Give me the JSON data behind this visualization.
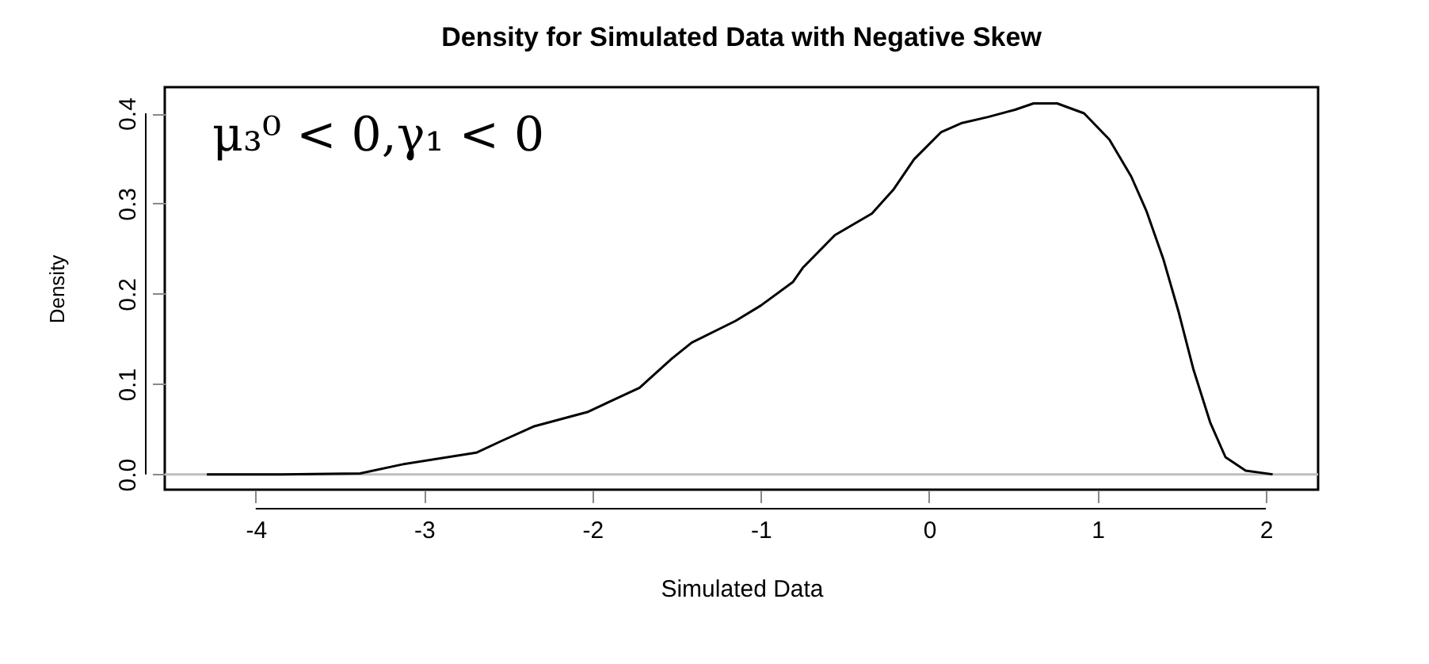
{
  "chart_data": {
    "type": "line",
    "title": "Density for Simulated Data with Negative Skew",
    "xlabel": "Simulated Data",
    "ylabel": "Density",
    "annotations": [
      "μ₃⁰ < 0,γ₁ < 0"
    ],
    "series": [
      {
        "color": "#000000",
        "x": [
          -4.29,
          -3.85,
          -3.38,
          -3.13,
          -2.69,
          -2.54,
          -2.35,
          -2.03,
          -1.72,
          -1.53,
          -1.41,
          -1.15,
          -1.0,
          -0.81,
          -0.75,
          -0.56,
          -0.34,
          -0.21,
          -0.09,
          0.07,
          0.19,
          0.35,
          0.51,
          0.62,
          0.76,
          0.92,
          1.07,
          1.2,
          1.29,
          1.39,
          1.48,
          1.57,
          1.67,
          1.76,
          1.88,
          2.04
        ],
        "values": [
          0.0,
          0.0,
          0.001,
          0.011,
          0.024,
          0.037,
          0.053,
          0.069,
          0.096,
          0.128,
          0.146,
          0.17,
          0.187,
          0.213,
          0.229,
          0.265,
          0.289,
          0.316,
          0.349,
          0.379,
          0.389,
          0.396,
          0.404,
          0.411,
          0.411,
          0.4,
          0.371,
          0.33,
          0.292,
          0.239,
          0.181,
          0.116,
          0.057,
          0.019,
          0.004,
          0.0
        ]
      }
    ],
    "ref_lines": [
      {
        "axis": "y",
        "value": 0,
        "color": "#bebebe"
      }
    ],
    "xlim": [
      -4.54,
      2.31
    ],
    "xticks": [
      -4,
      -3,
      -2,
      -1,
      0,
      1,
      2
    ],
    "ylim": [
      -0.017,
      0.429
    ],
    "yticks": [
      {
        "value": 0,
        "label": "0.0"
      },
      {
        "value": 0.1,
        "label": "0.1"
      },
      {
        "value": 0.2,
        "label": "0.2"
      },
      {
        "value": 0.3,
        "label": "0.3"
      },
      {
        "value": 0.4,
        "label": "0.4"
      }
    ],
    "grid": false,
    "marker": "none",
    "line_style": "solid"
  }
}
